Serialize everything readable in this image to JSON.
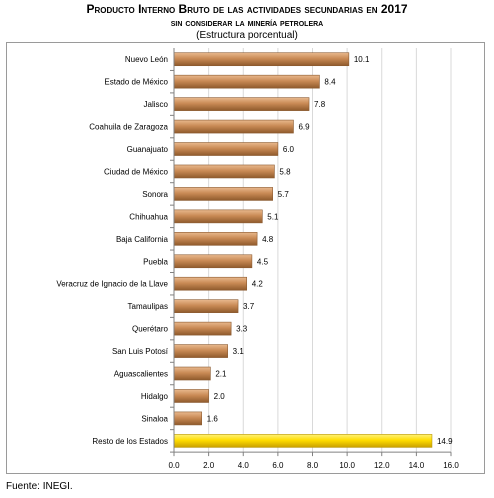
{
  "title": "Producto Interno Bruto de las actividades secundarias en 2017",
  "subtitle": "sin considerar la minería petrolera",
  "subtitle2": "(Estructura porcentual)",
  "source": "Fuente: INEGI.",
  "colors": {
    "bar": "#c98a55",
    "highlight": "#ffdd00",
    "grid": "#d9d9d9"
  },
  "chart_data": {
    "type": "bar",
    "orientation": "horizontal",
    "categories": [
      "Nuevo León",
      "Estado de México",
      "Jalisco",
      "Coahuila de Zaragoza",
      "Guanajuato",
      "Ciudad de México",
      "Sonora",
      "Chihuahua",
      "Baja California",
      "Puebla",
      "Veracruz de Ignacio de la Llave",
      "Tamaulipas",
      "Querétaro",
      "San Luis Potosí",
      "Aguascalientes",
      "Hidalgo",
      "Sinaloa",
      "Resto de los Estados"
    ],
    "values": [
      10.1,
      8.4,
      7.8,
      6.9,
      6.0,
      5.8,
      5.7,
      5.1,
      4.8,
      4.5,
      4.2,
      3.7,
      3.3,
      3.1,
      2.1,
      2.0,
      1.6,
      14.9
    ],
    "value_labels": [
      "10.1",
      "8.4",
      "7.8",
      "6.9",
      "6.0",
      "5.8",
      "5.7",
      "5.1",
      "4.8",
      "4.5",
      "4.2",
      "3.7",
      "3.3",
      "3.1",
      "2.1",
      "2.0",
      "1.6",
      "14.9"
    ],
    "highlight_index": 17,
    "xlim": [
      0,
      16
    ],
    "xticks": [
      "0.0",
      "2.0",
      "4.0",
      "6.0",
      "8.0",
      "10.0",
      "12.0",
      "14.0",
      "16.0"
    ],
    "grid": "vertical"
  }
}
